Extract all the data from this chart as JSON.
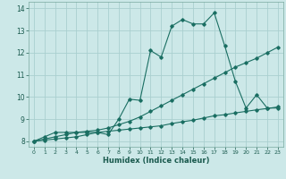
{
  "xlabel": "Humidex (Indice chaleur)",
  "background_color": "#cce8e8",
  "grid_color": "#aacfcf",
  "line_color": "#1a6e62",
  "xlim": [
    -0.5,
    23.5
  ],
  "ylim": [
    7.75,
    14.3
  ],
  "xticks": [
    0,
    1,
    2,
    3,
    4,
    5,
    6,
    7,
    8,
    9,
    10,
    11,
    12,
    13,
    14,
    15,
    16,
    17,
    18,
    19,
    20,
    21,
    22,
    23
  ],
  "yticks": [
    8,
    9,
    10,
    11,
    12,
    13,
    14
  ],
  "series": [
    {
      "x": [
        0,
        1,
        2,
        3,
        4,
        5,
        6,
        7,
        8,
        9,
        10,
        11,
        12,
        13,
        14,
        15,
        16,
        17,
        18,
        19,
        20,
        21,
        22,
        23
      ],
      "y": [
        8.0,
        8.2,
        8.4,
        8.4,
        8.4,
        8.4,
        8.4,
        8.3,
        9.0,
        9.9,
        9.85,
        12.1,
        11.8,
        13.2,
        13.5,
        13.3,
        13.3,
        13.8,
        12.3,
        10.7,
        9.5,
        10.1,
        9.5,
        9.5
      ]
    },
    {
      "x": [
        0,
        1,
        2,
        3,
        4,
        5,
        6,
        7,
        8,
        9,
        10,
        11,
        12,
        13,
        14,
        15,
        16,
        17,
        18,
        19,
        20,
        21,
        22,
        23
      ],
      "y": [
        8.0,
        8.1,
        8.2,
        8.3,
        8.4,
        8.45,
        8.5,
        8.6,
        8.75,
        8.9,
        9.1,
        9.35,
        9.6,
        9.85,
        10.1,
        10.35,
        10.6,
        10.85,
        11.1,
        11.35,
        11.55,
        11.75,
        12.0,
        12.25
      ]
    },
    {
      "x": [
        0,
        1,
        2,
        3,
        4,
        5,
        6,
        7,
        8,
        9,
        10,
        11,
        12,
        13,
        14,
        15,
        16,
        17,
        18,
        19,
        20,
        21,
        22,
        23
      ],
      "y": [
        8.0,
        8.05,
        8.1,
        8.15,
        8.2,
        8.3,
        8.4,
        8.45,
        8.5,
        8.55,
        8.6,
        8.65,
        8.7,
        8.8,
        8.88,
        8.95,
        9.05,
        9.15,
        9.2,
        9.28,
        9.35,
        9.42,
        9.48,
        9.55
      ]
    }
  ]
}
